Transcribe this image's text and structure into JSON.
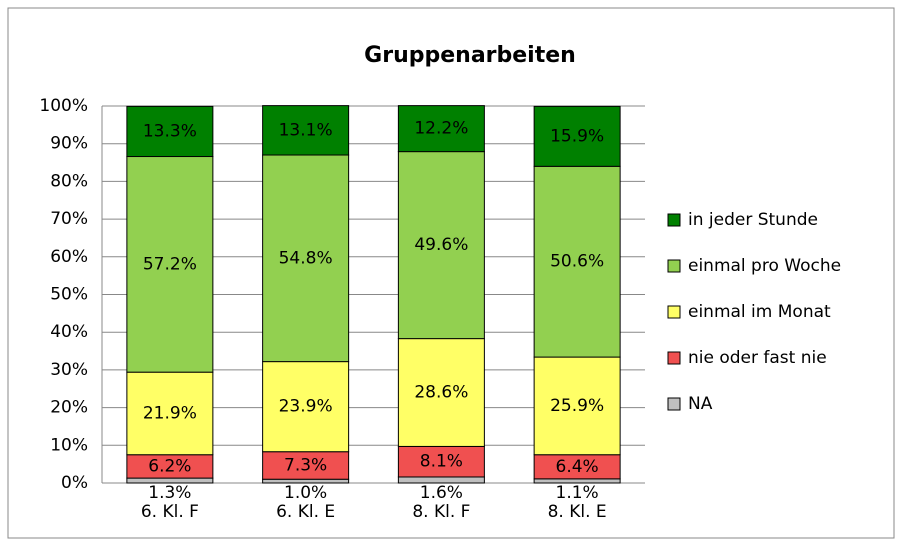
{
  "chart_data": {
    "type": "stacked_bar",
    "title": "Gruppenarbeiten",
    "categories": [
      "6. Kl. F",
      "6. Kl. E",
      "8. Kl. F",
      "8. Kl. E"
    ],
    "series": [
      {
        "name": "NA",
        "color": "#bfbfbf",
        "values": [
          1.3,
          1.0,
          1.6,
          1.1
        ],
        "value_labels": [
          "1.3%",
          "1.0%",
          "1.6%",
          "1.1%"
        ]
      },
      {
        "name": "nie oder fast nie",
        "color": "#f05050",
        "values": [
          6.2,
          7.3,
          8.1,
          6.4
        ],
        "value_labels": [
          "6.2%",
          "7.3%",
          "8.1%",
          "6.4%"
        ]
      },
      {
        "name": "einmal im Monat",
        "color": "#ffff66",
        "values": [
          21.9,
          23.9,
          28.6,
          25.9
        ],
        "value_labels": [
          "21.9%",
          "23.9%",
          "28.6%",
          "25.9%"
        ]
      },
      {
        "name": "einmal pro Woche",
        "color": "#92d050",
        "values": [
          57.2,
          54.8,
          49.6,
          50.6
        ],
        "value_labels": [
          "57.2%",
          "54.8%",
          "49.6%",
          "50.6%"
        ]
      },
      {
        "name": "in jeder Stunde",
        "color": "#008000",
        "values": [
          13.3,
          13.1,
          12.2,
          15.9
        ],
        "value_labels": [
          "13.3%",
          "13.1%",
          "12.2%",
          "15.9%"
        ]
      }
    ],
    "ylim": [
      0,
      100
    ],
    "yticks": [
      {
        "value": 0,
        "label": "0%"
      },
      {
        "value": 10,
        "label": "10%"
      },
      {
        "value": 20,
        "label": "20%"
      },
      {
        "value": 30,
        "label": "30%"
      },
      {
        "value": 40,
        "label": "40%"
      },
      {
        "value": 50,
        "label": "50%"
      },
      {
        "value": 60,
        "label": "60%"
      },
      {
        "value": 70,
        "label": "70%"
      },
      {
        "value": 80,
        "label": "80%"
      },
      {
        "value": 90,
        "label": "90%"
      },
      {
        "value": 100,
        "label": "100%"
      }
    ],
    "grid": true,
    "legend": "right"
  }
}
